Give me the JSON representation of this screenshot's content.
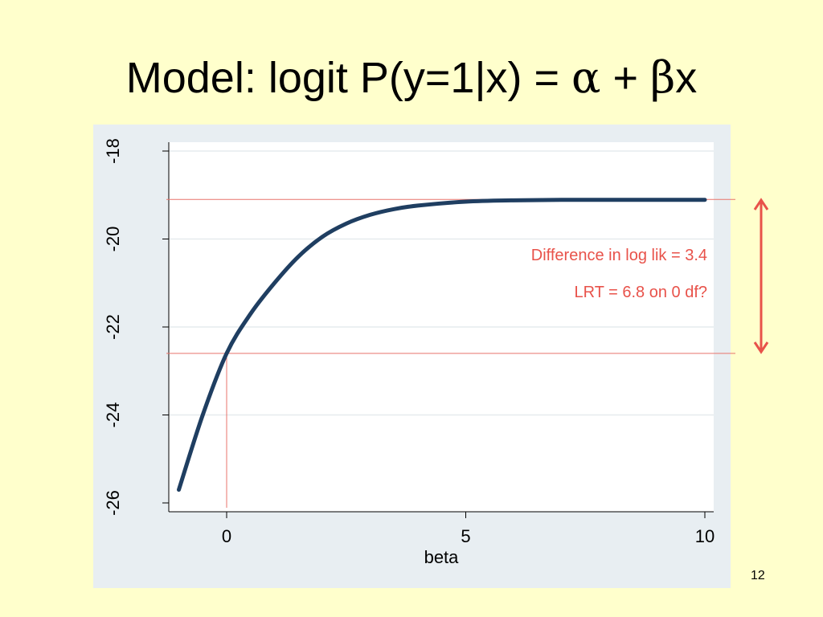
{
  "slide": {
    "title_prefix": "Model: logit P(y=1|x) = ",
    "alpha": "α",
    "plus": " + ",
    "beta": "β",
    "x": "x",
    "page_number": "12"
  },
  "chart_data": {
    "type": "line",
    "xlabel": "beta",
    "ylabel": "",
    "xlim": [
      -1,
      10
    ],
    "ylim": [
      -26,
      -18
    ],
    "xticks": [
      0,
      5,
      10
    ],
    "yticks": [
      -26,
      -24,
      -22,
      -20,
      -18
    ],
    "grid": "horizontal",
    "series": [
      {
        "x": [
          -1,
          -0.5,
          0,
          0.5,
          1,
          1.5,
          2,
          2.5,
          3,
          3.5,
          4,
          5,
          6,
          7,
          8,
          9,
          10
        ],
        "y": [
          -25.7,
          -24.0,
          -22.6,
          -21.7,
          -21.0,
          -20.4,
          -19.95,
          -19.65,
          -19.45,
          -19.32,
          -19.24,
          -19.15,
          -19.12,
          -19.11,
          -19.11,
          -19.11,
          -19.11
        ]
      }
    ],
    "reference_lines": {
      "horizontal_y": [
        -19.1,
        -22.6
      ],
      "vertical_x": 0
    },
    "annotations": [
      "Difference in log lik = 3.4",
      "LRT = 6.8 on 0 df?"
    ],
    "colors": {
      "line": "#1F3E61",
      "reference": "#E8736B",
      "annotation": "#E8524A",
      "plot_region": "#E8EEF2",
      "plot_bg": "#FFFFFF",
      "grid": "#E6EBEE"
    }
  }
}
